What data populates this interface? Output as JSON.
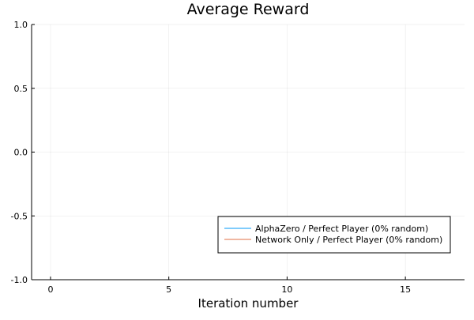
{
  "chart_data": {
    "type": "line",
    "title": "Average Reward",
    "xlabel": "Iteration number",
    "ylabel": "",
    "xlim": [
      -0.8,
      17.5
    ],
    "ylim": [
      -1.0,
      1.0
    ],
    "x_ticks": [
      0,
      5,
      10,
      15
    ],
    "x_tick_labels": [
      "0",
      "5",
      "10",
      "15"
    ],
    "y_ticks": [
      -1.0,
      -0.5,
      0.0,
      0.5,
      1.0
    ],
    "y_tick_labels": [
      "-1.0",
      "-0.5",
      "0.0",
      "0.5",
      "1.0"
    ],
    "grid": true,
    "legend_position": "bottom-right",
    "series": [
      {
        "name": "AlphaZero / Perfect Player (0% random)",
        "color": "#009AFA",
        "x": [],
        "y": []
      },
      {
        "name": "Network Only / Perfect Player (0% random)",
        "color": "#E26F46",
        "x": [],
        "y": []
      }
    ]
  }
}
